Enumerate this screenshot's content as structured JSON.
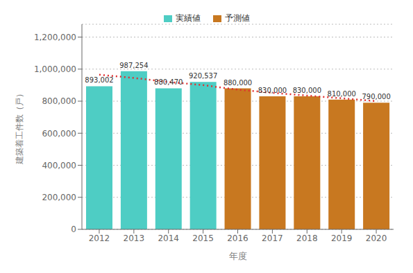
{
  "chart_data": {
    "type": "bar",
    "categories": [
      "2012",
      "2013",
      "2014",
      "2015",
      "2016",
      "2017",
      "2018",
      "2019",
      "2020"
    ],
    "series": [
      {
        "name": "実績値",
        "type": "bar",
        "color": "#4ECDC4",
        "values": [
          893002,
          987254,
          880470,
          920537,
          null,
          null,
          null,
          null,
          null
        ],
        "value_labels": [
          "893,002",
          "987,254",
          "880,470",
          "920,537",
          null,
          null,
          null,
          null,
          null
        ]
      },
      {
        "name": "予測値",
        "type": "bar",
        "color": "#C87820",
        "values": [
          null,
          null,
          null,
          null,
          880000,
          830000,
          830000,
          810000,
          790000
        ],
        "value_labels": [
          null,
          null,
          null,
          null,
          "880,000",
          "830,000",
          "830,000",
          "810,000",
          "790,000"
        ]
      },
      {
        "type": "line",
        "color": "#E03030",
        "line_style": "dotted",
        "values": [
          965000,
          945000,
          920000,
          900000,
          872000,
          852000,
          835000,
          818000,
          800000
        ]
      }
    ],
    "xlabel": "年度",
    "ylabel": "建築着工件数（戸）",
    "ylim": [
      0,
      1280000
    ],
    "yticks": [
      0,
      {
        "value": 200000,
        "label": "200,000"
      },
      {
        "value": 400000,
        "label": "400,000"
      },
      {
        "value": 600000,
        "label": "600,000"
      },
      {
        "value": 800000,
        "label": "800,000"
      },
      {
        "value": 1000000,
        "label": "1,000,000"
      },
      {
        "value": 1200000,
        "label": "1,200,000"
      }
    ],
    "grid": true,
    "legend": "top",
    "data_labels": true
  }
}
